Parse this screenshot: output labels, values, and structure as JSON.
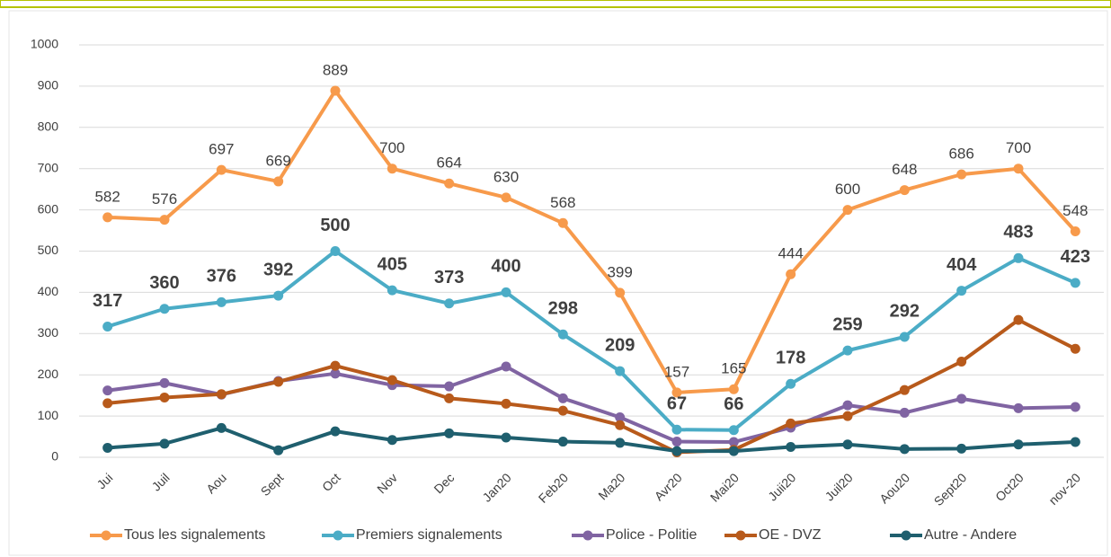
{
  "chart_data": {
    "type": "line",
    "categories": [
      "Jui",
      "Juil",
      "Aou",
      "Sept",
      "Oct",
      "Nov",
      "Dec",
      "Jan20",
      "Feb20",
      "Ma20",
      "Avr20",
      "Mai20",
      "Juii20",
      "Juil20",
      "Aou20",
      "Sept20",
      "Oct20",
      "nov-20"
    ],
    "series": [
      {
        "name": "Tous les signalements",
        "color": "#f79a4b",
        "values": [
          582,
          576,
          697,
          669,
          889,
          700,
          664,
          630,
          568,
          399,
          157,
          165,
          444,
          600,
          648,
          686,
          700,
          548
        ]
      },
      {
        "name": "Premiers signalements",
        "color": "#4bacc6",
        "values": [
          317,
          360,
          376,
          392,
          500,
          405,
          373,
          400,
          298,
          209,
          67,
          66,
          178,
          259,
          292,
          404,
          483,
          423
        ]
      },
      {
        "name": "Police - Politie",
        "color": "#8064a2",
        "values": [
          162,
          180,
          152,
          185,
          203,
          175,
          172,
          220,
          143,
          97,
          38,
          37,
          72,
          126,
          108,
          142,
          119,
          122
        ]
      },
      {
        "name": "OE - DVZ",
        "color": "#b85a1b",
        "values": [
          131,
          145,
          153,
          183,
          222,
          187,
          143,
          130,
          113,
          78,
          12,
          18,
          82,
          100,
          163,
          232,
          333,
          263
        ]
      },
      {
        "name": "Autre - Andere",
        "color": "#1f5f6e",
        "values": [
          23,
          33,
          71,
          17,
          63,
          42,
          58,
          48,
          38,
          35,
          15,
          15,
          25,
          31,
          20,
          21,
          31,
          37
        ]
      }
    ],
    "ylim": [
      0,
      1000
    ],
    "yticks": [
      0,
      100,
      200,
      300,
      400,
      500,
      600,
      700,
      800,
      900,
      1000
    ],
    "grid": true,
    "legend": "bottom"
  }
}
